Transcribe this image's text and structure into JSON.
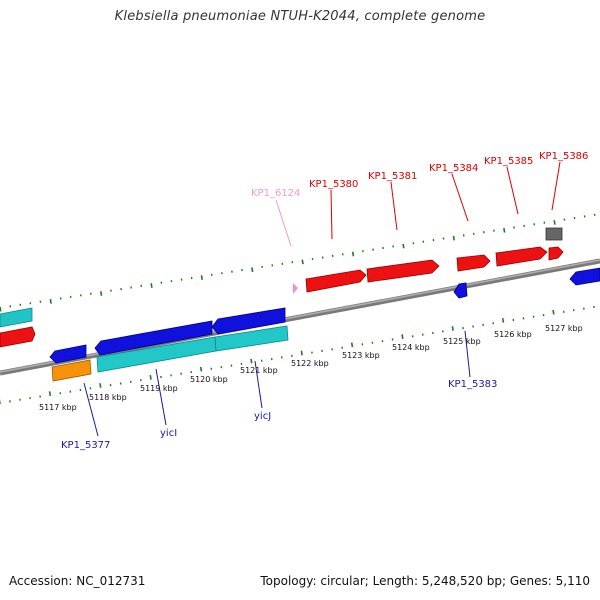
{
  "title": "Klebsiella pneumoniae NTUH-K2044, complete genome",
  "footer": {
    "accession": "Accession: NC_012731",
    "summary": "Topology: circular; Length: 5,248,520 bp; Genes: 5,110"
  },
  "colors": {
    "backbone": "#8a8a8a",
    "tick": "#1e7a1e",
    "red_gene": "#ee1111",
    "blue_gene": "#1111dd",
    "cyan_gene": "#22c8c8",
    "orange_gene": "#f5910a",
    "grey_gene": "#666666",
    "pink_gene": "#f48fc8",
    "label_red": "#dd0000",
    "label_blue": "#1a1aa0",
    "label_pink": "#f29ac6"
  },
  "scale_labels": [
    "5117 kbp",
    "5118 kbp",
    "5119 kbp",
    "5120 kbp",
    "5121 kbp",
    "5122 kbp",
    "5123 kbp",
    "5124 kbp",
    "5125 kbp",
    "5126 kbp",
    "5127 kbp"
  ],
  "top_labels": [
    {
      "text": "KP1_6124",
      "color": "label_pink"
    },
    {
      "text": "KP1_5380",
      "color": "label_red"
    },
    {
      "text": "KP1_5381",
      "color": "label_red"
    },
    {
      "text": "KP1_5384",
      "color": "label_red"
    },
    {
      "text": "KP1_5385",
      "color": "label_red"
    },
    {
      "text": "KP1_5386",
      "color": "label_red"
    }
  ],
  "bottom_labels": [
    {
      "text": "KP1_5377",
      "color": "label_blue"
    },
    {
      "text": "yicI",
      "color": "label_blue"
    },
    {
      "text": "yicJ",
      "color": "label_blue"
    },
    {
      "text": "KP1_5383",
      "color": "label_blue"
    }
  ]
}
